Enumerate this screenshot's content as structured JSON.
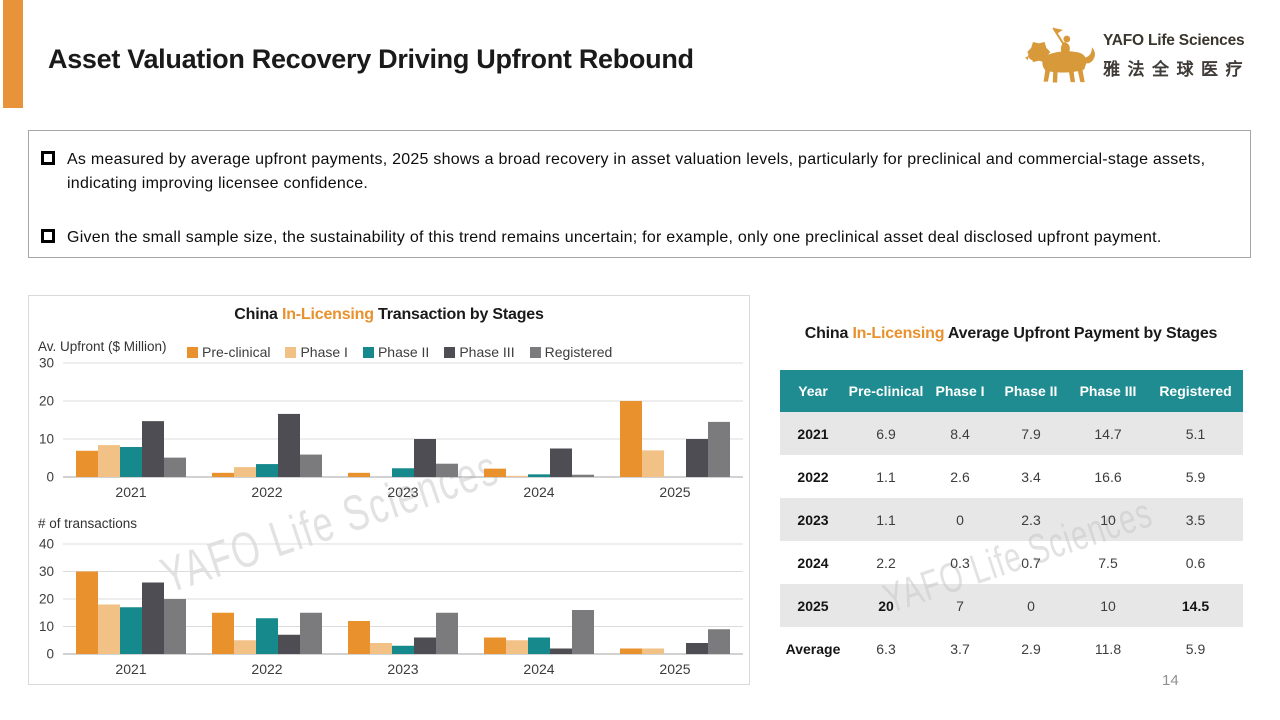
{
  "slide": {
    "title": "Asset Valuation Recovery Driving Upfront Rebound",
    "page_number": "14",
    "watermark": "YAFO Life Sciences",
    "accent_color": "#E8923A"
  },
  "logo": {
    "name_en": "YAFO Life Sciences",
    "name_cn": "雅法全球医疗",
    "lion_color": "#D8993B"
  },
  "bullets": [
    "As measured by average upfront payments, 2025 shows a broad recovery in asset valuation levels, particularly for preclinical and commercial-stage assets, indicating improving licensee confidence.",
    "Given the small sample size, the sustainability of this trend remains uncertain; for example, only one preclinical asset deal disclosed upfront payment."
  ],
  "chart_data": [
    {
      "type": "bar",
      "title": {
        "prefix": "China ",
        "highlight": "In-Licensing",
        "suffix": " Transaction by Stages"
      },
      "ylabel": "Av. Upfront ($ Million)",
      "categories": [
        "2021",
        "2022",
        "2023",
        "2024",
        "2025"
      ],
      "series": [
        {
          "name": "Pre-clinical",
          "color": "#E8912D",
          "values": [
            6.9,
            1.1,
            1.1,
            2.2,
            20
          ]
        },
        {
          "name": "Phase I",
          "color": "#F2C185",
          "values": [
            8.4,
            2.6,
            0,
            0.3,
            7
          ]
        },
        {
          "name": "Phase II",
          "color": "#15898C",
          "values": [
            7.9,
            3.4,
            2.3,
            0.7,
            0
          ]
        },
        {
          "name": "Phase III",
          "color": "#4D4D53",
          "values": [
            14.7,
            16.6,
            10,
            7.5,
            10
          ]
        },
        {
          "name": "Registered",
          "color": "#7B7B7D",
          "values": [
            5.1,
            5.9,
            3.5,
            0.6,
            14.5
          ]
        }
      ],
      "ylim": [
        0,
        30
      ],
      "yticks": [
        0,
        10,
        20,
        30
      ],
      "legend_position": "top",
      "grid": true
    },
    {
      "type": "bar",
      "ylabel": "# of transactions",
      "categories": [
        "2021",
        "2022",
        "2023",
        "2024",
        "2025"
      ],
      "series": [
        {
          "name": "Pre-clinical",
          "color": "#E8912D",
          "values": [
            30,
            15,
            12,
            6,
            2
          ]
        },
        {
          "name": "Phase I",
          "color": "#F2C185",
          "values": [
            18,
            5,
            4,
            5,
            2
          ]
        },
        {
          "name": "Phase II",
          "color": "#15898C",
          "values": [
            17,
            13,
            3,
            6,
            0
          ]
        },
        {
          "name": "Phase III",
          "color": "#4D4D53",
          "values": [
            26,
            7,
            6,
            2,
            4
          ]
        },
        {
          "name": "Registered",
          "color": "#7B7B7D",
          "values": [
            20,
            15,
            15,
            16,
            9
          ]
        }
      ],
      "ylim": [
        0,
        40
      ],
      "yticks": [
        0,
        10,
        20,
        30,
        40
      ],
      "legend_position": "none",
      "grid": true
    }
  ],
  "table": {
    "title": {
      "prefix": "China ",
      "highlight": "In-Licensing",
      "suffix": " Average Upfront Payment by Stages"
    },
    "header_color": "#1E8C91",
    "headers": [
      "Year",
      "Pre-clinical",
      "Phase I",
      "Phase II",
      "Phase III",
      "Registered"
    ],
    "rows": [
      {
        "year": "2021",
        "values": [
          "6.9",
          "8.4",
          "7.9",
          "14.7",
          "5.1"
        ],
        "shaded": true,
        "bold_cols": []
      },
      {
        "year": "2022",
        "values": [
          "1.1",
          "2.6",
          "3.4",
          "16.6",
          "5.9"
        ],
        "shaded": false,
        "bold_cols": []
      },
      {
        "year": "2023",
        "values": [
          "1.1",
          "0",
          "2.3",
          "10",
          "3.5"
        ],
        "shaded": true,
        "bold_cols": []
      },
      {
        "year": "2024",
        "values": [
          "2.2",
          "0.3",
          "0.7",
          "7.5",
          "0.6"
        ],
        "shaded": false,
        "bold_cols": []
      },
      {
        "year": "2025",
        "values": [
          "20",
          "7",
          "0",
          "10",
          "14.5"
        ],
        "shaded": true,
        "bold_cols": [
          0,
          4
        ]
      },
      {
        "year": "Average",
        "values": [
          "6.3",
          "3.7",
          "2.9",
          "11.8",
          "5.9"
        ],
        "shaded": false,
        "bold_cols": []
      }
    ]
  }
}
